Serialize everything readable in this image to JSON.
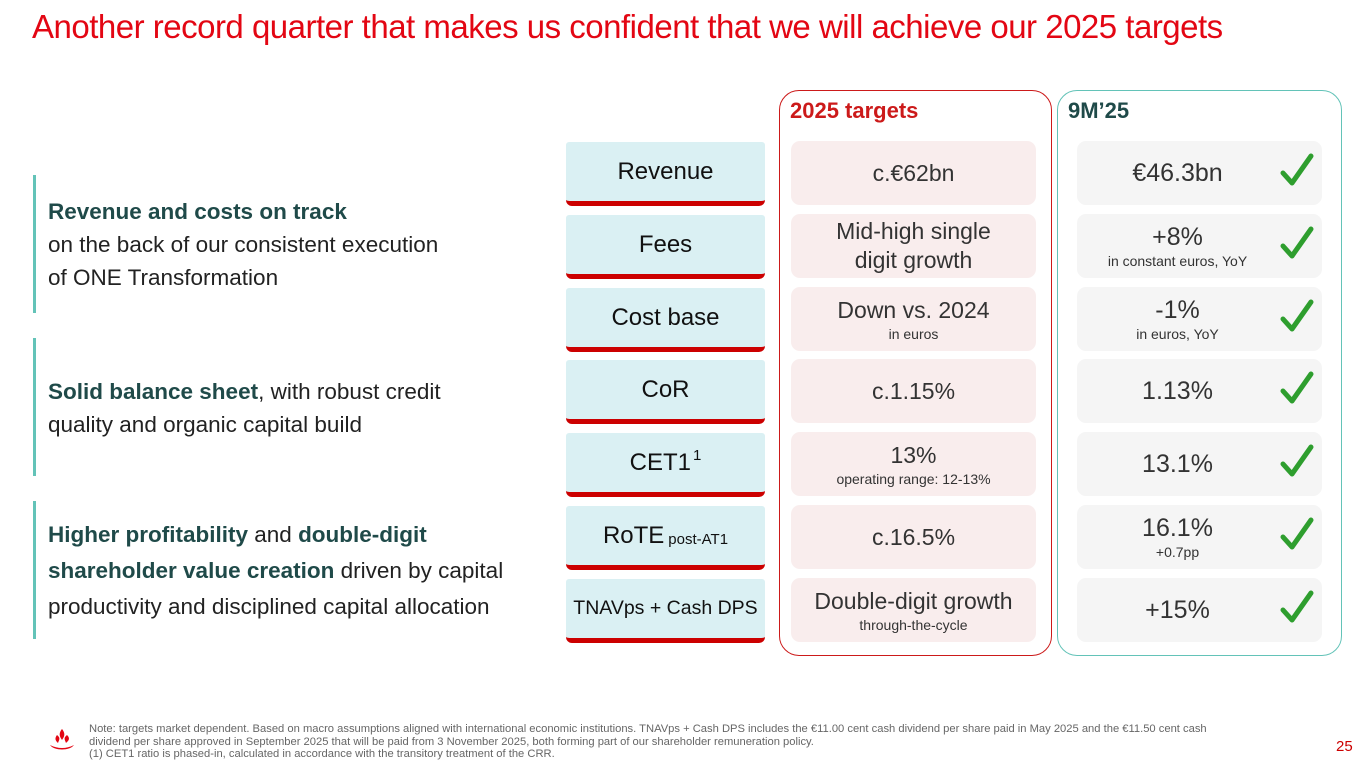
{
  "title": "Another record quarter that makes us confident that we will achieve our 2025 targets",
  "points": [
    {
      "highlight": "Revenue and costs on track",
      "line2": "on the back of our consistent execution",
      "line3": "of ONE Transformation"
    },
    {
      "highlight": "Solid balance sheet",
      "rest": ", with robust credit",
      "line2": "quality and organic capital build"
    },
    {
      "highlight1": "Higher profitability",
      "and": " and ",
      "highlight2": "double-digit",
      "highlight3": "shareholder value creation",
      "rest": " driven by capital",
      "line3": "productivity and disciplined capital allocation"
    }
  ],
  "headers": {
    "targets": "2025 targets",
    "actuals": "9M’25"
  },
  "metrics": [
    {
      "label": "Revenue",
      "target": "c.€62bn",
      "actual": "€46.3bn"
    },
    {
      "label": "Fees",
      "target_l1": "Mid-high single",
      "target_l2": "digit growth",
      "actual": "+8%",
      "actual_sub": "in constant euros, YoY"
    },
    {
      "label": "Cost base",
      "target": "Down vs. 2024",
      "target_sub": "in euros",
      "actual": "-1%",
      "actual_sub": "in euros, YoY"
    },
    {
      "label": "CoR",
      "target": "c.1.15%",
      "actual": "1.13%"
    },
    {
      "label": "CET1",
      "label_sup": "1",
      "target": "13%",
      "target_sub": "operating range: 12-13%",
      "actual": "13.1%"
    },
    {
      "label": "RoTE",
      "label_small": "post-AT1",
      "target": "c.16.5%",
      "actual": "16.1%",
      "actual_sub": "+0.7pp"
    },
    {
      "label": "TNAVps + Cash DPS",
      "target": "Double-digit growth",
      "target_sub": "through-the-cycle",
      "actual": "+15%"
    }
  ],
  "footnote": {
    "line1": "Note: targets market dependent. Based on macro assumptions aligned with international economic institutions. TNAVps + Cash DPS includes the €11.00 cent cash dividend per share paid in May 2025 and the €11.50 cent cash",
    "line2": "dividend per share approved in September 2025 that will be paid from 3 November 2025, both forming part of our shareholder remuneration policy.",
    "line3": "(1) CET1 ratio is phased-in, calculated in accordance with the transitory treatment of the CRR."
  },
  "page_number": "25",
  "colors": {
    "brand_red": "#e30613",
    "teal": "#63c3b8",
    "dark_teal": "#1f4a49",
    "check_green": "#2e9e2e"
  },
  "icons": {
    "check": "check-icon",
    "logo": "santander-flame-logo"
  }
}
